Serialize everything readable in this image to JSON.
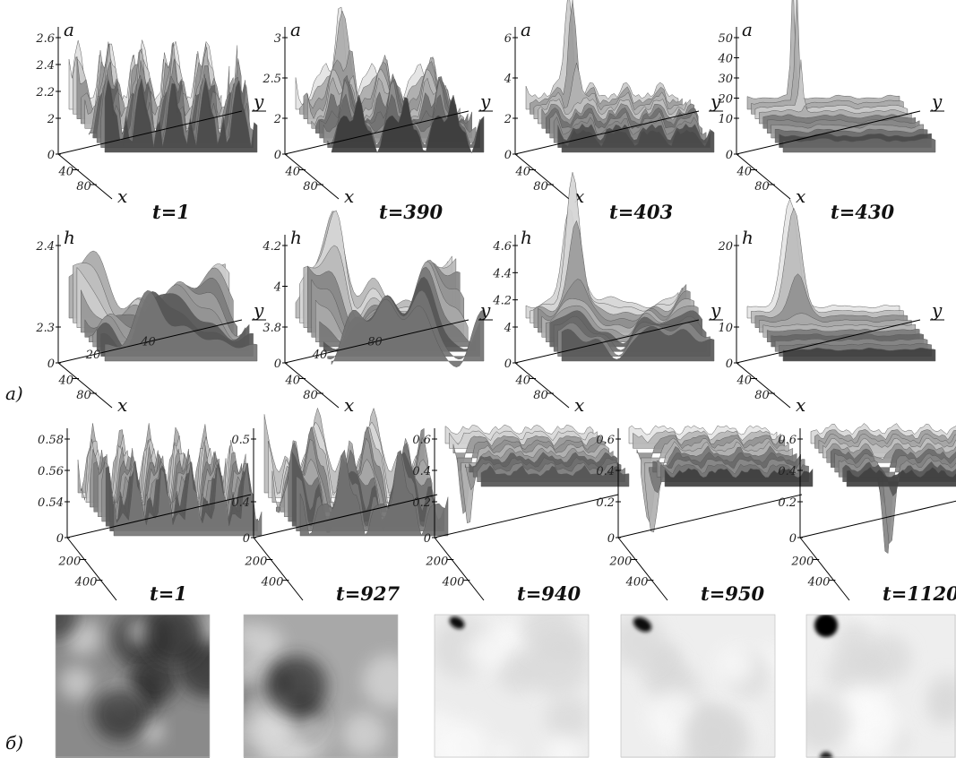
{
  "part_a": {
    "label": "а)",
    "rows": [
      {
        "panels": [
          {
            "z_label": "a",
            "z_ticks": [
              "2.6",
              "2.4",
              "2.2",
              "2",
              "0"
            ],
            "x_ticks": [
              "40",
              "80"
            ],
            "x_label": "x",
            "y_label": "y",
            "time": "t=1"
          },
          {
            "z_label": "a",
            "z_ticks": [
              "3",
              "2.5",
              "2",
              "0"
            ],
            "x_ticks": [
              "40",
              "80"
            ],
            "x_label": "x",
            "y_label": "y",
            "time": "t=390"
          },
          {
            "z_label": "a",
            "z_ticks": [
              "6",
              "4",
              "2",
              "0"
            ],
            "x_ticks": [
              "40",
              "80"
            ],
            "x_label": "x",
            "y_label": "y",
            "time": "t=403"
          },
          {
            "z_label": "a",
            "z_ticks": [
              "50",
              "40",
              "30",
              "20",
              "10",
              "0"
            ],
            "x_ticks": [
              "40",
              "80"
            ],
            "x_label": "x",
            "y_label": "y",
            "time": "t=430"
          }
        ]
      },
      {
        "panels": [
          {
            "z_label": "h",
            "z_ticks": [
              "2.4",
              "2.3",
              "0"
            ],
            "x_ticks": [
              "40",
              "80"
            ],
            "y_ticks": [
              "20",
              "40"
            ],
            "x_label": "x",
            "y_label": "y"
          },
          {
            "z_label": "h",
            "z_ticks": [
              "4.2",
              "4",
              "3.8",
              "0"
            ],
            "x_ticks": [
              "40",
              "80"
            ],
            "y_ticks": [
              "40",
              "80"
            ],
            "x_label": "x",
            "y_label": "y"
          },
          {
            "z_label": "h",
            "z_ticks": [
              "4.6",
              "4.4",
              "4.2",
              "4",
              "0"
            ],
            "x_ticks": [
              "40",
              "80"
            ],
            "x_label": "x",
            "y_label": "y"
          },
          {
            "z_label": "h",
            "z_ticks": [
              "20",
              "10",
              "0"
            ],
            "x_ticks": [
              "40",
              "80"
            ],
            "x_label": "x",
            "y_label": "y"
          }
        ]
      }
    ]
  },
  "part_b": {
    "label": "б)",
    "panels": [
      {
        "z_ticks": [
          "0.58",
          "0.56",
          "0.54",
          "0"
        ],
        "x_ticks": [
          "200",
          "400"
        ],
        "time": "t=1"
      },
      {
        "z_ticks": [
          "0.5",
          "0.4",
          "0"
        ],
        "x_ticks": [
          "200",
          "400"
        ],
        "time": "t=927"
      },
      {
        "z_ticks": [
          "0.6",
          "0.4",
          "0.2",
          "0"
        ],
        "x_ticks": [
          "200",
          "400"
        ],
        "time": "t=940"
      },
      {
        "z_ticks": [
          "0.6",
          "0.4",
          "0.2",
          "0"
        ],
        "x_ticks": [
          "200",
          "400"
        ],
        "time": "t=950"
      },
      {
        "z_ticks": [
          "0.6",
          "0.4",
          "0.2",
          "0"
        ],
        "x_ticks": [
          "200",
          "400"
        ],
        "time": "t=1120"
      }
    ]
  }
}
